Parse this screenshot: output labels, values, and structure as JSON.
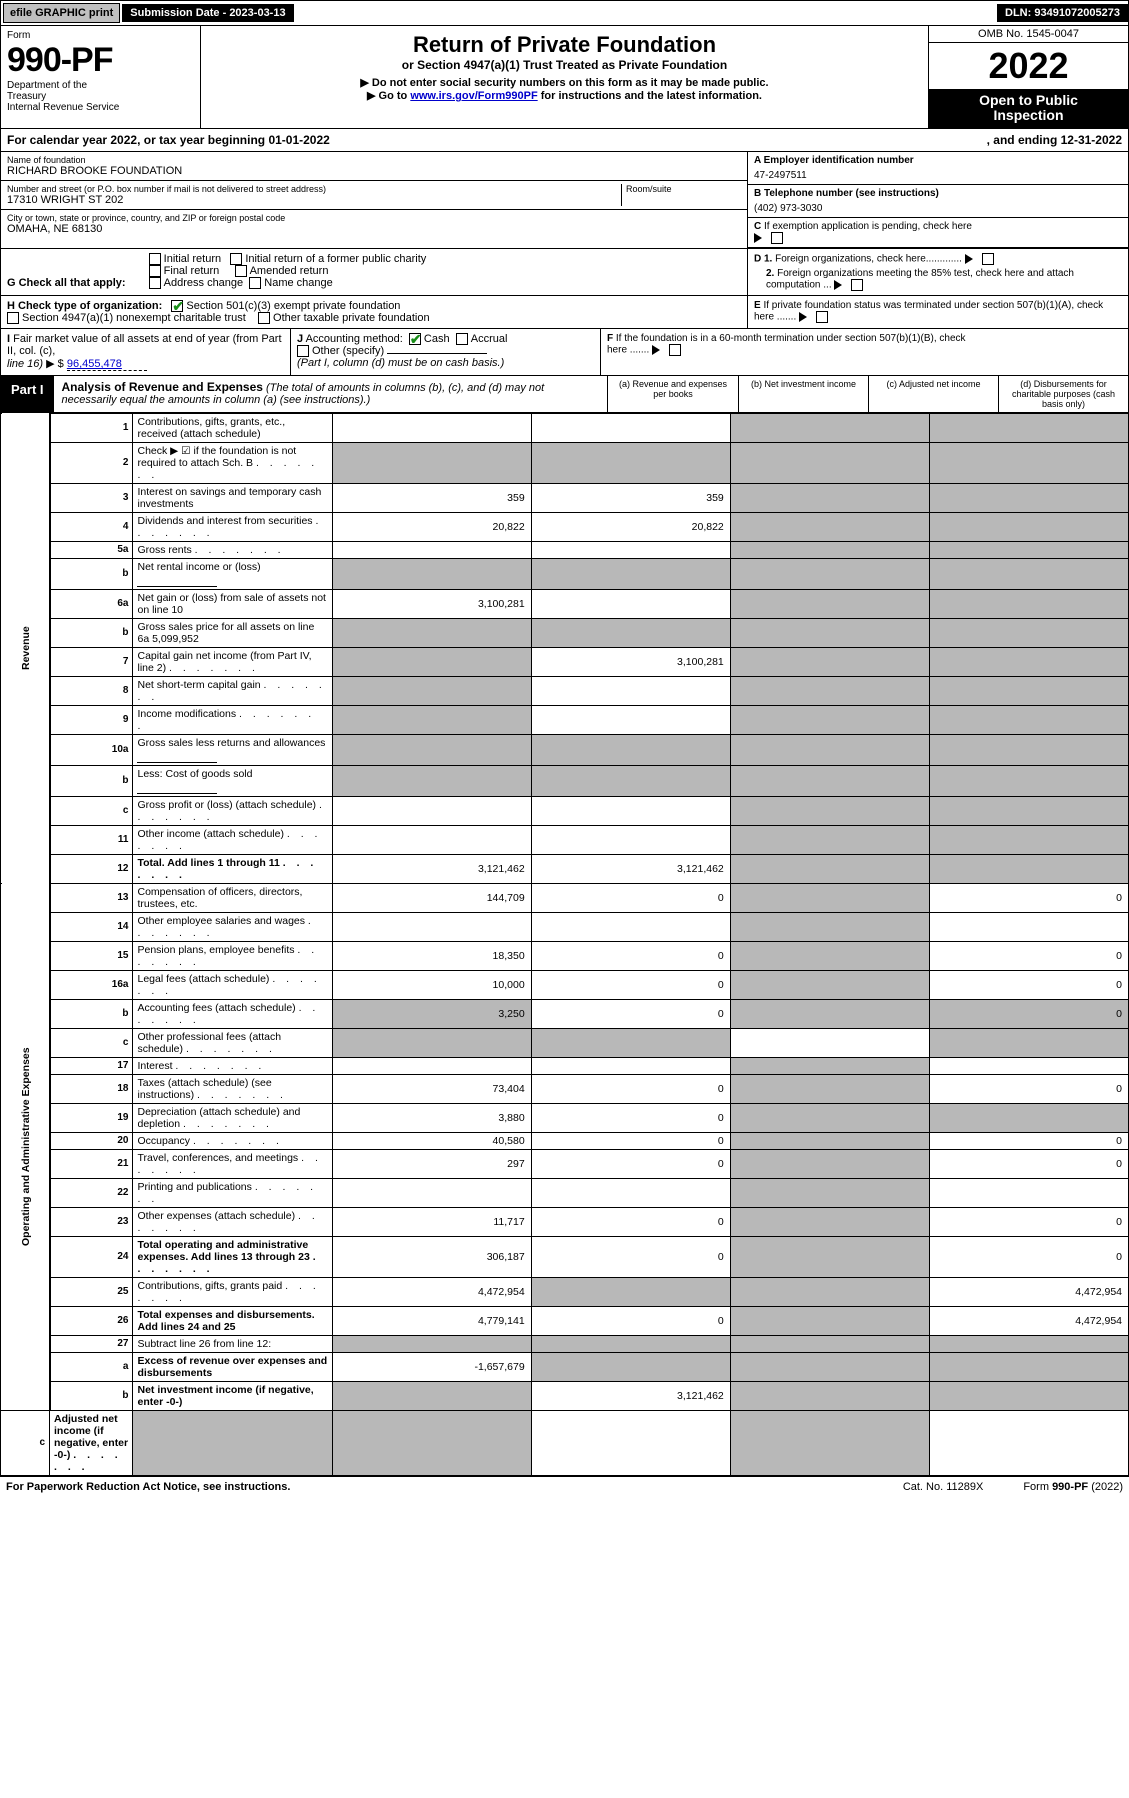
{
  "topbar": {
    "efile": "efile GRAPHIC print",
    "subdate_label": "Submission Date - 2023-03-13",
    "dln": "DLN: 93491072005273"
  },
  "header": {
    "form_word": "Form",
    "form_number": "990-PF",
    "dept": "Department of the Treasury\nInternal Revenue Service",
    "title": "Return of Private Foundation",
    "subtitle": "or Section 4947(a)(1) Trust Treated as Private Foundation",
    "instr1": "▶ Do not enter social security numbers on this form as it may be made public.",
    "instr2_pre": "▶ Go to ",
    "instr2_link": "www.irs.gov/Form990PF",
    "instr2_post": " for instructions and the latest information.",
    "omb": "OMB No. 1545-0047",
    "year": "2022",
    "open": "Open to Public Inspection"
  },
  "calendar": {
    "left": "For calendar year 2022, or tax year beginning 01-01-2022",
    "right": ", and ending 12-31-2022"
  },
  "entity": {
    "name_label": "Name of foundation",
    "name": "RICHARD BROOKE FOUNDATION",
    "addr_label": "Number and street (or P.O. box number if mail is not delivered to street address)",
    "room_label": "Room/suite",
    "addr": "17310 WRIGHT ST 202",
    "city_label": "City or town, state or province, country, and ZIP or foreign postal code",
    "city": "OMAHA, NE  68130",
    "ein_label": "A Employer identification number",
    "ein": "47-2497511",
    "phone_label": "B Telephone number (see instructions)",
    "phone": "(402) 973-3030",
    "c_label": "C If exemption application is pending, check here"
  },
  "g": {
    "label": "G Check all that apply:",
    "initial": "Initial return",
    "initial_former": "Initial return of a former public charity",
    "final": "Final return",
    "amended": "Amended return",
    "addr_change": "Address change",
    "name_change": "Name change"
  },
  "d": {
    "d1": "D 1. Foreign organizations, check here.............",
    "d2": "2. Foreign organizations meeting the 85% test, check here and attach computation ..."
  },
  "e": {
    "label": "E  If private foundation status was terminated under section 507(b)(1)(A), check here ......."
  },
  "h": {
    "label": "H Check type of organization:",
    "a": "Section 501(c)(3) exempt private foundation",
    "b": "Section 4947(a)(1) nonexempt charitable trust",
    "c": "Other taxable private foundation"
  },
  "i": {
    "label": "I Fair market value of all assets at end of year (from Part II, col. (c), line 16) ▶ $",
    "val": "96,455,478"
  },
  "j": {
    "label": "J Accounting method:",
    "cash": "Cash",
    "accrual": "Accrual",
    "other": "Other (specify)",
    "note": "(Part I, column (d) must be on cash basis.)"
  },
  "f": {
    "label": "F  If the foundation is in a 60-month termination under section 507(b)(1)(B), check here ......."
  },
  "part1": {
    "tab": "Part I",
    "title": "Analysis of Revenue and Expenses",
    "title_note": "(The total of amounts in columns (b), (c), and (d) may not necessarily equal the amounts in column (a) (see instructions).)",
    "col_a": "(a)   Revenue and expenses per books",
    "col_b": "(b)   Net investment income",
    "col_c": "(c)   Adjusted net income",
    "col_d": "(d)   Disbursements for charitable purposes (cash basis only)",
    "side_rev": "Revenue",
    "side_exp": "Operating and Administrative Expenses"
  },
  "rows": [
    {
      "n": "1",
      "d": "Contributions, gifts, grants, etc., received (attach schedule)"
    },
    {
      "n": "2",
      "d": "Check ▶ ☑ if the foundation is not required to attach Sch. B",
      "dots": true,
      "checkbox": true
    },
    {
      "n": "3",
      "d": "Interest on savings and temporary cash investments",
      "a": "359",
      "b": "359"
    },
    {
      "n": "4",
      "d": "Dividends and interest from securities",
      "dots": true,
      "a": "20,822",
      "b": "20,822"
    },
    {
      "n": "5a",
      "d": "Gross rents",
      "dots": true
    },
    {
      "n": "b",
      "d": "Net rental income or (loss)",
      "box": true
    },
    {
      "n": "6a",
      "d": "Net gain or (loss) from sale of assets not on line 10",
      "a": "3,100,281"
    },
    {
      "n": "b",
      "d": "Gross sales price for all assets on line 6a",
      "inline_val": "5,099,952"
    },
    {
      "n": "7",
      "d": "Capital gain net income (from Part IV, line 2)",
      "dots": true,
      "b": "3,100,281"
    },
    {
      "n": "8",
      "d": "Net short-term capital gain",
      "dots": true
    },
    {
      "n": "9",
      "d": "Income modifications",
      "dots": true
    },
    {
      "n": "10a",
      "d": "Gross sales less returns and allowances",
      "box": true
    },
    {
      "n": "b",
      "d": "Less: Cost of goods sold",
      "dots": true,
      "box": true
    },
    {
      "n": "c",
      "d": "Gross profit or (loss) (attach schedule)",
      "dots": true
    },
    {
      "n": "11",
      "d": "Other income (attach schedule)",
      "dots": true
    },
    {
      "n": "12",
      "d": "Total. Add lines 1 through 11",
      "dots": true,
      "bold": true,
      "a": "3,121,462",
      "b": "3,121,462"
    },
    {
      "n": "13",
      "d": "Compensation of officers, directors, trustees, etc.",
      "a": "144,709",
      "b": "0",
      "d4": "0"
    },
    {
      "n": "14",
      "d": "Other employee salaries and wages",
      "dots": true
    },
    {
      "n": "15",
      "d": "Pension plans, employee benefits",
      "dots": true,
      "a": "18,350",
      "b": "0",
      "d4": "0"
    },
    {
      "n": "16a",
      "d": "Legal fees (attach schedule)",
      "dots": true,
      "a": "10,000",
      "b": "0",
      "d4": "0"
    },
    {
      "n": "b",
      "d": "Accounting fees (attach schedule)",
      "dots": true,
      "a": "3,250",
      "b": "0",
      "d4": "0"
    },
    {
      "n": "c",
      "d": "Other professional fees (attach schedule)",
      "dots": true
    },
    {
      "n": "17",
      "d": "Interest",
      "dots": true
    },
    {
      "n": "18",
      "d": "Taxes (attach schedule) (see instructions)",
      "dots": true,
      "a": "73,404",
      "b": "0",
      "d4": "0"
    },
    {
      "n": "19",
      "d": "Depreciation (attach schedule) and depletion",
      "dots": true,
      "a": "3,880",
      "b": "0"
    },
    {
      "n": "20",
      "d": "Occupancy",
      "dots": true,
      "a": "40,580",
      "b": "0",
      "d4": "0"
    },
    {
      "n": "21",
      "d": "Travel, conferences, and meetings",
      "dots": true,
      "a": "297",
      "b": "0",
      "d4": "0"
    },
    {
      "n": "22",
      "d": "Printing and publications",
      "dots": true
    },
    {
      "n": "23",
      "d": "Other expenses (attach schedule)",
      "dots": true,
      "a": "11,717",
      "b": "0",
      "d4": "0"
    },
    {
      "n": "24",
      "d": "Total operating and administrative expenses. Add lines 13 through 23",
      "dots": true,
      "bold": true,
      "a": "306,187",
      "b": "0",
      "d4": "0"
    },
    {
      "n": "25",
      "d": "Contributions, gifts, grants paid",
      "dots": true,
      "a": "4,472,954",
      "d4": "4,472,954"
    },
    {
      "n": "26",
      "d": "Total expenses and disbursements. Add lines 24 and 25",
      "bold": true,
      "a": "4,779,141",
      "b": "0",
      "d4": "4,472,954"
    },
    {
      "n": "27",
      "d": "Subtract line 26 from line 12:"
    },
    {
      "n": "a",
      "d": "Excess of revenue over expenses and disbursements",
      "bold": true,
      "a": "-1,657,679"
    },
    {
      "n": "b",
      "d": "Net investment income (if negative, enter -0-)",
      "bold": true,
      "b": "3,121,462"
    },
    {
      "n": "c",
      "d": "Adjusted net income (if negative, enter -0-)",
      "dots": true,
      "bold": true
    }
  ],
  "footer": {
    "left": "For Paperwork Reduction Act Notice, see instructions.",
    "cat": "Cat. No. 11289X",
    "form": "Form 990-PF (2022)"
  }
}
